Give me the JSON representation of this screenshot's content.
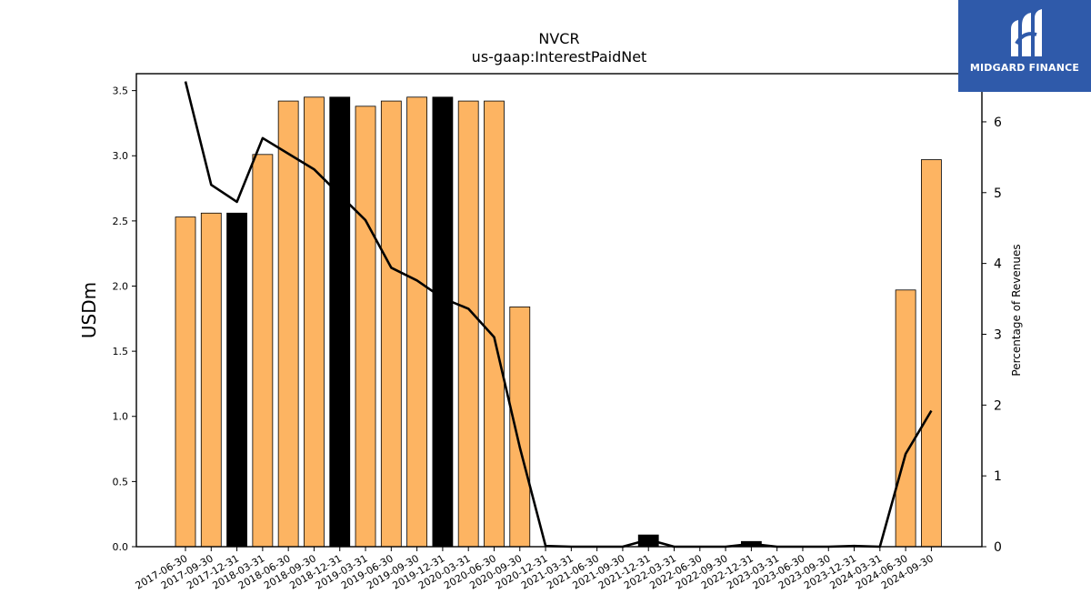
{
  "chart_data": {
    "type": "bar",
    "title": "NVCR",
    "subtitle": "us-gaap:InterestPaidNet",
    "ylabel": "USDm",
    "y2label": "Percentage of Revenues",
    "ylim": [
      0,
      3.63
    ],
    "y2lim": [
      0,
      6.68
    ],
    "yticks": [
      "0.0",
      "0.5",
      "1.0",
      "1.5",
      "2.0",
      "2.5",
      "3.0",
      "3.5"
    ],
    "y2ticks": [
      "0",
      "1",
      "2",
      "3",
      "4",
      "5",
      "6"
    ],
    "grid": false,
    "categories": [
      "2017-06-30",
      "2017-09-30",
      "2017-12-31",
      "2018-03-31",
      "2018-06-30",
      "2018-09-30",
      "2018-12-31",
      "2019-03-31",
      "2019-06-30",
      "2019-09-30",
      "2019-12-31",
      "2020-03-31",
      "2020-06-30",
      "2020-09-30",
      "2020-12-31",
      "2021-03-31",
      "2021-06-30",
      "2021-09-30",
      "2021-12-31",
      "2022-03-31",
      "2022-06-30",
      "2022-09-30",
      "2022-12-31",
      "2023-03-31",
      "2023-06-30",
      "2023-09-30",
      "2023-12-31",
      "2024-03-31",
      "2024-06-30",
      "2024-09-30"
    ],
    "series": [
      {
        "kind": "bar",
        "values": [
          2.53,
          2.56,
          2.56,
          3.01,
          3.42,
          3.45,
          3.45,
          3.38,
          3.42,
          3.45,
          3.45,
          3.42,
          3.42,
          1.84,
          0,
          0,
          0,
          0,
          0.09,
          0,
          0,
          0,
          0.04,
          0,
          0,
          0,
          0,
          0,
          1.97,
          2.97
        ],
        "highlight": [
          false,
          false,
          true,
          false,
          false,
          false,
          true,
          false,
          false,
          false,
          true,
          false,
          false,
          false,
          false,
          false,
          false,
          false,
          true,
          false,
          false,
          false,
          true,
          false,
          false,
          false,
          false,
          false,
          false,
          false
        ],
        "color": "#fdb462",
        "highlight_color": "#000000"
      },
      {
        "kind": "line",
        "axis": "right",
        "values": [
          6.57,
          5.11,
          4.87,
          5.77,
          5.55,
          5.33,
          4.97,
          4.61,
          3.94,
          3.76,
          3.51,
          3.36,
          2.96,
          1.4,
          0.01,
          0.0,
          0.0,
          0.0,
          0.1,
          0.0,
          0.0,
          0.0,
          0.04,
          0.0,
          0.0,
          0.0,
          0.01,
          0.0,
          1.31,
          1.92
        ],
        "color": "#000000"
      }
    ]
  },
  "logo": {
    "text": "MIDGARD FINANCE",
    "bg": "#2f5aaa"
  }
}
